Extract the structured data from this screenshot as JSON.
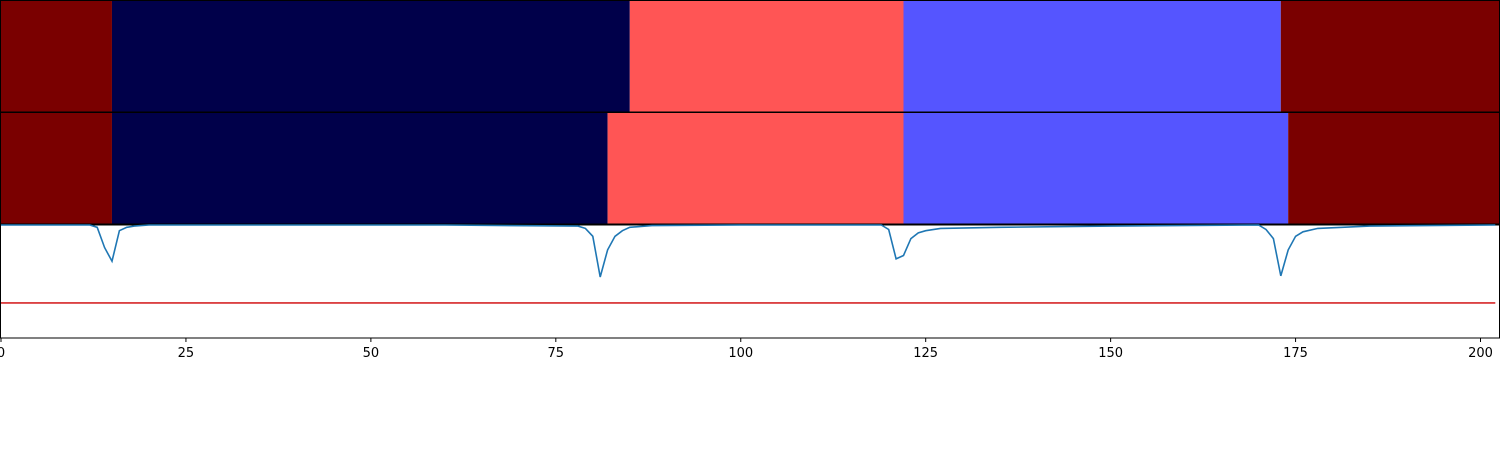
{
  "chart_data": {
    "type": "segmentation-timeline",
    "x_range": [
      0,
      202.5
    ],
    "x_ticks": [
      0,
      25,
      50,
      75,
      100,
      125,
      150,
      175,
      200
    ],
    "x_tick_labels": [
      "0",
      "25",
      "50",
      "75",
      "100",
      "125",
      "150",
      "175",
      "200"
    ],
    "segment_colors": {
      "dark_red": "#7a0000",
      "navy": "#00004a",
      "salmon": "#ff5555",
      "blue": "#5555ff"
    },
    "tracks": [
      {
        "segments": [
          {
            "start": 0,
            "end": 15,
            "color": "dark_red"
          },
          {
            "start": 15,
            "end": 85,
            "color": "navy"
          },
          {
            "start": 85,
            "end": 122,
            "color": "salmon"
          },
          {
            "start": 122,
            "end": 173,
            "color": "blue"
          },
          {
            "start": 173,
            "end": 202.5,
            "color": "dark_red"
          }
        ]
      },
      {
        "segments": [
          {
            "start": 0,
            "end": 15,
            "color": "dark_red"
          },
          {
            "start": 15,
            "end": 82,
            "color": "navy"
          },
          {
            "start": 82,
            "end": 122,
            "color": "salmon"
          },
          {
            "start": 122,
            "end": 174,
            "color": "blue"
          },
          {
            "start": 174,
            "end": 202.5,
            "color": "dark_red"
          }
        ]
      }
    ],
    "signal_panel": {
      "y_range": [
        0,
        1
      ],
      "series_color": "#1f77b4",
      "threshold_color": "#d62728",
      "threshold": 0.31,
      "x": [
        0,
        12,
        13,
        14,
        15,
        16,
        17,
        18,
        20,
        30,
        60,
        78,
        79,
        80,
        81,
        82,
        83,
        84,
        85,
        88,
        100,
        119,
        120,
        121,
        122,
        123,
        124,
        125,
        127,
        135,
        150,
        170,
        171,
        172,
        173,
        174,
        175,
        176,
        178,
        185,
        202
      ],
      "y": [
        1.0,
        1.0,
        0.98,
        0.8,
        0.68,
        0.95,
        0.98,
        0.99,
        1.0,
        1.0,
        1.0,
        0.99,
        0.97,
        0.9,
        0.54,
        0.78,
        0.9,
        0.95,
        0.98,
        0.995,
        1.0,
        1.0,
        0.96,
        0.7,
        0.73,
        0.88,
        0.93,
        0.95,
        0.97,
        0.98,
        0.99,
        1.0,
        0.96,
        0.88,
        0.55,
        0.78,
        0.9,
        0.94,
        0.97,
        0.99,
        1.0
      ]
    }
  }
}
